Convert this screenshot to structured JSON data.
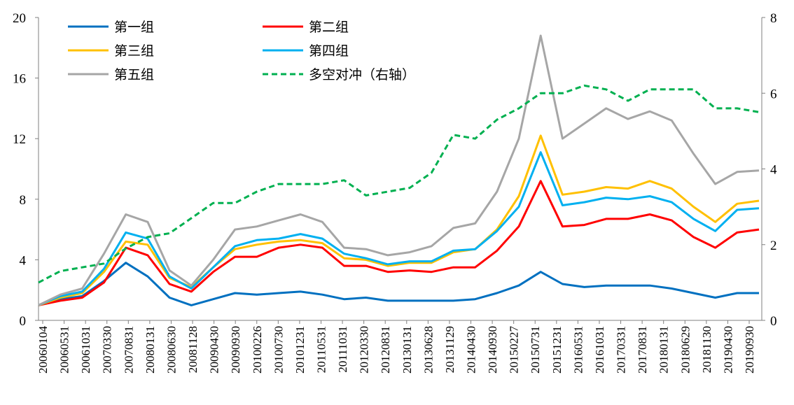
{
  "chart_data": {
    "type": "line",
    "title": "",
    "xlabel": "",
    "ylabel": "",
    "y2label": "",
    "x_ticks": [
      "20060104",
      "20060531",
      "20061031",
      "20070330",
      "20070831",
      "20080131",
      "20080630",
      "20081128",
      "20090430",
      "20090930",
      "20100226",
      "20100730",
      "20101231",
      "20110531",
      "20111031",
      "20120330",
      "20120831",
      "20130131",
      "20130628",
      "20131129",
      "20140430",
      "20140930",
      "20150227",
      "20150731",
      "20151231",
      "20160531",
      "20161031",
      "20170331",
      "20170831",
      "20180131",
      "20180629",
      "20181130",
      "20190430",
      "20190930"
    ],
    "ylim": [
      0,
      20
    ],
    "y_ticks": [
      "0",
      "4",
      "8",
      "12",
      "16",
      "20"
    ],
    "y2lim": [
      0,
      8
    ],
    "y2_ticks": [
      "0",
      "2",
      "4",
      "6",
      "8"
    ],
    "grid": false,
    "legend_position": "top-left",
    "x_point_count": 34,
    "series": [
      {
        "name": "第一组",
        "axis": "left",
        "color": "#0070C0",
        "dash": "",
        "values": [
          1.0,
          1.4,
          1.6,
          2.6,
          3.8,
          2.9,
          1.5,
          1.0,
          1.4,
          1.8,
          1.7,
          1.8,
          1.9,
          1.7,
          1.4,
          1.5,
          1.3,
          1.3,
          1.3,
          1.3,
          1.4,
          1.8,
          2.3,
          3.2,
          2.4,
          2.2,
          2.3,
          2.3,
          2.3,
          2.1,
          1.8,
          1.5,
          1.8,
          1.8
        ]
      },
      {
        "name": "第二组",
        "axis": "left",
        "color": "#FF0000",
        "dash": "",
        "values": [
          1.0,
          1.3,
          1.5,
          2.5,
          4.8,
          4.3,
          2.4,
          1.9,
          3.2,
          4.2,
          4.2,
          4.8,
          5.0,
          4.8,
          3.6,
          3.6,
          3.2,
          3.3,
          3.2,
          3.5,
          3.5,
          4.6,
          6.2,
          9.2,
          6.2,
          6.3,
          6.7,
          6.7,
          7.0,
          6.6,
          5.5,
          4.8,
          5.8,
          6.0
        ]
      },
      {
        "name": "第三组",
        "axis": "left",
        "color": "#FFC000",
        "dash": "",
        "values": [
          1.0,
          1.5,
          1.8,
          3.2,
          5.2,
          5.0,
          2.8,
          2.2,
          3.5,
          4.7,
          5.0,
          5.2,
          5.3,
          5.1,
          4.1,
          4.0,
          3.6,
          3.8,
          3.8,
          4.5,
          4.7,
          6.0,
          8.2,
          12.2,
          8.3,
          8.5,
          8.8,
          8.7,
          9.2,
          8.7,
          7.5,
          6.5,
          7.7,
          7.9
        ]
      },
      {
        "name": "第四组",
        "axis": "left",
        "color": "#00B0F0",
        "dash": "",
        "values": [
          1.0,
          1.6,
          1.9,
          3.4,
          5.8,
          5.4,
          2.9,
          2.1,
          3.5,
          4.9,
          5.3,
          5.4,
          5.7,
          5.4,
          4.4,
          4.1,
          3.7,
          3.9,
          3.9,
          4.6,
          4.7,
          5.9,
          7.5,
          11.1,
          7.6,
          7.8,
          8.1,
          8.0,
          8.2,
          7.8,
          6.7,
          5.9,
          7.3,
          7.4
        ]
      },
      {
        "name": "第五组",
        "axis": "left",
        "color": "#A6A6A6",
        "dash": "",
        "values": [
          1.0,
          1.7,
          2.1,
          4.4,
          7.0,
          6.5,
          3.3,
          2.3,
          4.0,
          6.0,
          6.2,
          6.6,
          7.0,
          6.5,
          4.8,
          4.7,
          4.3,
          4.5,
          4.9,
          6.1,
          6.4,
          8.5,
          12.0,
          18.8,
          12.0,
          13.0,
          14.0,
          13.3,
          13.8,
          13.2,
          11.0,
          9.0,
          9.8,
          9.9
        ]
      },
      {
        "name": "多空对冲（右轴）",
        "axis": "right",
        "color": "#00B050",
        "dash": "8,5",
        "values": [
          1.0,
          1.3,
          1.4,
          1.5,
          1.9,
          2.2,
          2.3,
          2.7,
          3.1,
          3.1,
          3.4,
          3.6,
          3.6,
          3.6,
          3.7,
          3.3,
          3.4,
          3.5,
          3.9,
          4.9,
          4.8,
          5.3,
          5.6,
          6.0,
          6.0,
          6.2,
          6.1,
          5.8,
          6.1,
          6.1,
          6.1,
          5.6,
          5.6,
          5.5
        ]
      }
    ]
  }
}
